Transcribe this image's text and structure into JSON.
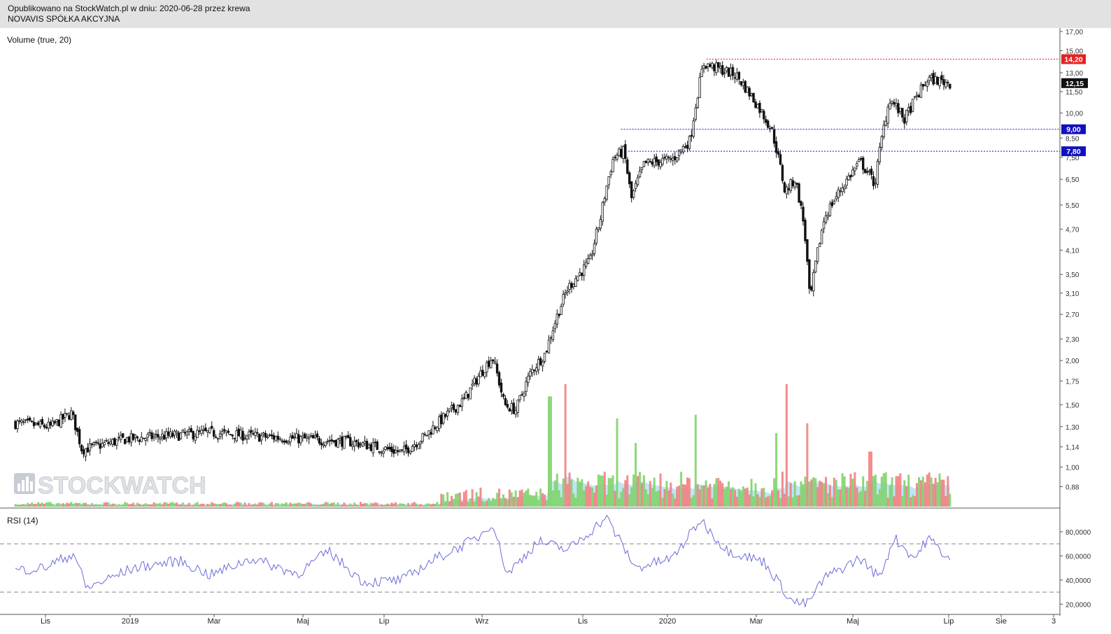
{
  "header": {
    "published_line": "Opublikowano na StockWatch.pl w dniu: 2020-06-28 przez krewa",
    "company": "NOVAVIS SPÓŁKA AKCYJNA"
  },
  "watermark": "STOCKWATCH",
  "chart_data": [
    {
      "type": "candlestick",
      "indicator_label": "Volume (true, 20)",
      "y_scale": "log",
      "ylim": [
        0.78,
        17.0
      ],
      "y_ticks": [
        "17,00",
        "15,00",
        "13,00",
        "11,50",
        "10,00",
        "8,50",
        "7,50",
        "6,50",
        "5,50",
        "4,70",
        "4,10",
        "3,50",
        "3,10",
        "2,70",
        "2,30",
        "2,00",
        "1,75",
        "1,50",
        "1,30",
        "1,14",
        "1,00",
        "0,88"
      ],
      "x_ticks": [
        "Lis",
        "2019",
        "Mar",
        "Maj",
        "Lip",
        "Wrz",
        "Lis",
        "2020",
        "Mar",
        "Maj",
        "Lip",
        "Sie",
        "3"
      ],
      "x_range": [
        "2018-10-01",
        "2020-09-03"
      ],
      "price_keypoints": [
        {
          "date": "2018-10-01",
          "close": 1.33
        },
        {
          "date": "2018-10-25",
          "close": 1.3
        },
        {
          "date": "2018-11-08",
          "close": 1.42
        },
        {
          "date": "2018-11-15",
          "close": 1.12
        },
        {
          "date": "2018-12-15",
          "close": 1.2
        },
        {
          "date": "2019-02-10",
          "close": 1.25
        },
        {
          "date": "2019-03-15",
          "close": 1.22
        },
        {
          "date": "2019-05-15",
          "close": 1.18
        },
        {
          "date": "2019-06-20",
          "close": 1.1
        },
        {
          "date": "2019-07-05",
          "close": 1.22
        },
        {
          "date": "2019-08-01",
          "close": 1.55
        },
        {
          "date": "2019-08-20",
          "close": 2.05
        },
        {
          "date": "2019-08-28",
          "close": 1.5
        },
        {
          "date": "2019-09-05",
          "close": 1.45
        },
        {
          "date": "2019-09-15",
          "close": 1.85
        },
        {
          "date": "2019-09-25",
          "close": 2.1
        },
        {
          "date": "2019-10-10",
          "close": 3.2
        },
        {
          "date": "2019-10-25",
          "close": 3.8
        },
        {
          "date": "2019-11-01",
          "close": 5.0
        },
        {
          "date": "2019-11-10",
          "close": 7.5
        },
        {
          "date": "2019-11-17",
          "close": 7.8
        },
        {
          "date": "2019-11-22",
          "close": 5.7
        },
        {
          "date": "2019-12-01",
          "close": 7.2
        },
        {
          "date": "2019-12-20",
          "close": 7.4
        },
        {
          "date": "2020-01-01",
          "close": 8.4
        },
        {
          "date": "2020-01-10",
          "close": 13.8
        },
        {
          "date": "2020-02-01",
          "close": 12.8
        },
        {
          "date": "2020-02-25",
          "close": 9.0
        },
        {
          "date": "2020-03-05",
          "close": 6.0
        },
        {
          "date": "2020-03-12",
          "close": 6.5
        },
        {
          "date": "2020-03-18",
          "close": 4.8
        },
        {
          "date": "2020-03-22",
          "close": 2.9
        },
        {
          "date": "2020-04-01",
          "close": 5.1
        },
        {
          "date": "2020-04-25",
          "close": 7.3
        },
        {
          "date": "2020-05-05",
          "close": 6.3
        },
        {
          "date": "2020-05-15",
          "close": 11.0
        },
        {
          "date": "2020-05-25",
          "close": 9.6
        },
        {
          "date": "2020-06-10",
          "close": 12.5
        },
        {
          "date": "2020-06-26",
          "close": 12.15
        }
      ],
      "horizontal_levels": [
        {
          "value": 14.2,
          "label": "14,20",
          "color": "#e82020",
          "from": "2020-01-12"
        },
        {
          "value": 9.0,
          "label": "9,00",
          "color": "#1010c0",
          "from": "2019-11-15"
        },
        {
          "value": 7.8,
          "label": "7,80",
          "color": "#1010c0",
          "from": "2019-11-20"
        }
      ],
      "last_price": {
        "value": 12.15,
        "label": "12,15",
        "color": "#111111"
      },
      "volume": {
        "average_color": "#8ecdf2",
        "up_color": "#7fd36a",
        "down_color": "#f27f7f",
        "spikes": [
          {
            "date": "2019-09-28",
            "value": 0.9
          },
          {
            "date": "2019-10-08",
            "value": 1.0
          },
          {
            "date": "2019-11-12",
            "value": 0.72
          },
          {
            "date": "2019-11-25",
            "value": 0.52
          },
          {
            "date": "2020-01-05",
            "value": 0.75
          },
          {
            "date": "2020-02-28",
            "value": 0.6
          },
          {
            "date": "2020-03-06",
            "value": 1.0
          },
          {
            "date": "2020-03-20",
            "value": 0.68
          },
          {
            "date": "2020-05-02",
            "value": 0.45
          },
          {
            "date": "2020-06-20",
            "value": 0.22
          }
        ]
      }
    },
    {
      "type": "line",
      "indicator_label": "RSI (14)",
      "ylim": [
        15,
        95
      ],
      "y_ticks": [
        "80,0000",
        "60,0000",
        "40,0000",
        "20,0000"
      ],
      "reference_lines": [
        70,
        30
      ],
      "line_color": "#6b6bd8",
      "keypoints": [
        {
          "date": "2018-10-01",
          "rsi": 48
        },
        {
          "date": "2018-10-20",
          "rsi": 50
        },
        {
          "date": "2018-11-10",
          "rsi": 62
        },
        {
          "date": "2018-11-18",
          "rsi": 33
        },
        {
          "date": "2018-12-20",
          "rsi": 50
        },
        {
          "date": "2019-01-20",
          "rsi": 56
        },
        {
          "date": "2019-02-10",
          "rsi": 44
        },
        {
          "date": "2019-03-10",
          "rsi": 58
        },
        {
          "date": "2019-04-10",
          "rsi": 45
        },
        {
          "date": "2019-05-01",
          "rsi": 64
        },
        {
          "date": "2019-05-25",
          "rsi": 38
        },
        {
          "date": "2019-06-20",
          "rsi": 40
        },
        {
          "date": "2019-07-10",
          "rsi": 56
        },
        {
          "date": "2019-08-10",
          "rsi": 75
        },
        {
          "date": "2019-08-20",
          "rsi": 88
        },
        {
          "date": "2019-08-30",
          "rsi": 45
        },
        {
          "date": "2019-09-20",
          "rsi": 72
        },
        {
          "date": "2019-10-10",
          "rsi": 65
        },
        {
          "date": "2019-10-25",
          "rsi": 80
        },
        {
          "date": "2019-11-05",
          "rsi": 92
        },
        {
          "date": "2019-11-25",
          "rsi": 50
        },
        {
          "date": "2019-12-20",
          "rsi": 58
        },
        {
          "date": "2020-01-08",
          "rsi": 90
        },
        {
          "date": "2020-01-25",
          "rsi": 65
        },
        {
          "date": "2020-02-20",
          "rsi": 55
        },
        {
          "date": "2020-03-10",
          "rsi": 22
        },
        {
          "date": "2020-03-20",
          "rsi": 20
        },
        {
          "date": "2020-04-01",
          "rsi": 42
        },
        {
          "date": "2020-04-25",
          "rsi": 58
        },
        {
          "date": "2020-05-08",
          "rsi": 42
        },
        {
          "date": "2020-05-18",
          "rsi": 75
        },
        {
          "date": "2020-06-01",
          "rsi": 58
        },
        {
          "date": "2020-06-10",
          "rsi": 75
        },
        {
          "date": "2020-06-26",
          "rsi": 55
        }
      ]
    }
  ]
}
